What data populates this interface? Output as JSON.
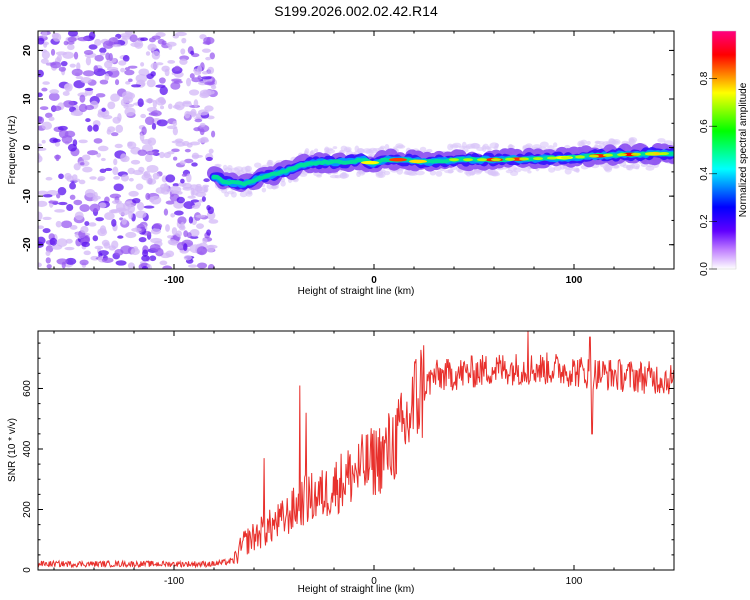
{
  "title": "S199.2026.002.02.42.R14",
  "chart_data": [
    {
      "type": "heatmap",
      "name": "spectrogram",
      "xlabel": "Height of straight line (km)",
      "ylabel": "Frequency (Hz)",
      "xlim": [
        -168,
        150
      ],
      "ylim": [
        -25,
        24
      ],
      "x_ticks": [
        "-100",
        "0",
        "100"
      ],
      "y_ticks": [
        "20",
        "10",
        "0",
        "-10",
        "-20"
      ],
      "x_tick_values": [
        -100,
        0,
        100
      ],
      "y_tick_values": [
        20,
        10,
        0,
        -10,
        -20
      ],
      "noise_region_km": [
        -168,
        -80
      ],
      "ridge": {
        "description_points_km_hz": [
          [
            -82,
            -5.5
          ],
          [
            -75,
            -7
          ],
          [
            -65,
            -7.5
          ],
          [
            -55,
            -6
          ],
          [
            -45,
            -5
          ],
          [
            -35,
            -3.5
          ],
          [
            -25,
            -3
          ],
          [
            -15,
            -3
          ],
          [
            -5,
            -2.5
          ],
          [
            0,
            -3.5
          ],
          [
            5,
            -2.5
          ],
          [
            15,
            -2.5
          ],
          [
            25,
            -3
          ],
          [
            40,
            -2.5
          ],
          [
            60,
            -2.5
          ],
          [
            80,
            -2.3
          ],
          [
            100,
            -2
          ],
          [
            120,
            -1.5
          ],
          [
            148,
            -1.2
          ]
        ]
      },
      "colorbar": {
        "label": "Normalized spectral amplitude",
        "ticks": [
          "0.0",
          "0.2",
          "0.4",
          "0.6",
          "0.8"
        ],
        "tick_values": [
          0.0,
          0.2,
          0.4,
          0.6,
          0.8
        ],
        "range": [
          0,
          1
        ],
        "colors": [
          "#ffffff",
          "#c080ff",
          "#6000ff",
          "#0000ff",
          "#0080ff",
          "#00ffff",
          "#00ff80",
          "#00ff00",
          "#80ff00",
          "#ffff00",
          "#ff8000",
          "#ff0000",
          "#ff0080"
        ]
      }
    },
    {
      "type": "line",
      "name": "snr",
      "xlabel": "Height of straight line (km)",
      "ylabel": "SNR (10 * v/v)",
      "xlim": [
        -168,
        150
      ],
      "ylim": [
        0,
        790
      ],
      "x_ticks": [
        "-100",
        "0",
        "100"
      ],
      "y_ticks": [
        "0",
        "200",
        "400",
        "600"
      ],
      "x_tick_values": [
        -100,
        0,
        100
      ],
      "y_tick_values": [
        0,
        200,
        400,
        600
      ],
      "color": "#e8302c",
      "trend_points_km_snr": [
        [
          -168,
          20
        ],
        [
          -80,
          20
        ],
        [
          -70,
          30
        ],
        [
          -65,
          90
        ],
        [
          -55,
          130
        ],
        [
          -45,
          170
        ],
        [
          -35,
          230
        ],
        [
          -25,
          250
        ],
        [
          -15,
          300
        ],
        [
          -5,
          340
        ],
        [
          5,
          380
        ],
        [
          15,
          460
        ],
        [
          22,
          580
        ],
        [
          30,
          640
        ],
        [
          45,
          650
        ],
        [
          60,
          665
        ],
        [
          75,
          665
        ],
        [
          90,
          665
        ],
        [
          110,
          650
        ],
        [
          130,
          640
        ],
        [
          150,
          630
        ]
      ],
      "spikes_km_snr": [
        [
          -37,
          610
        ],
        [
          -34,
          520
        ],
        [
          -55,
          370
        ],
        [
          77,
          790
        ],
        [
          108,
          770
        ],
        [
          109,
          450
        ]
      ]
    }
  ]
}
